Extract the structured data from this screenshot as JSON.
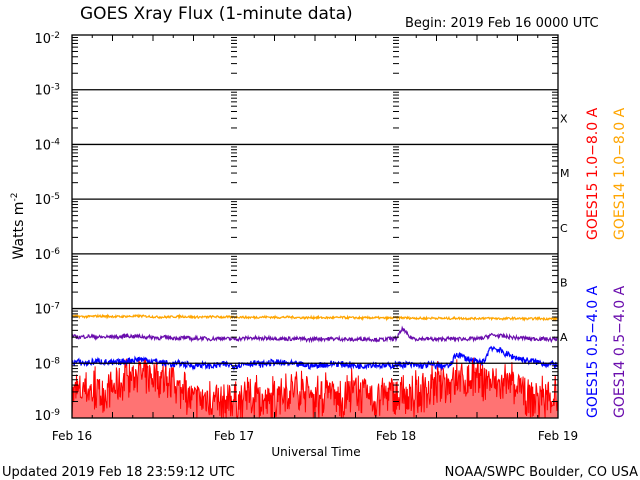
{
  "chart_data": {
    "type": "line",
    "title": "GOES Xray Flux (1-minute data)",
    "begin": "Begin:  2019 Feb 16 0000 UTC",
    "xlabel": "Universal Time",
    "ylabel": "Watts m",
    "ylabel_sup": "-2",
    "x_unit": "hours since 2019 Feb 16 0000 UTC",
    "xlim": [
      0,
      72
    ],
    "ylim": [
      1e-09,
      0.01
    ],
    "yscale": "log",
    "x_ticks": [
      {
        "x": 0,
        "label": "Feb 16"
      },
      {
        "x": 24,
        "label": "Feb 17"
      },
      {
        "x": 48,
        "label": "Feb 18"
      },
      {
        "x": 72,
        "label": "Feb 19"
      }
    ],
    "y_ticks": [
      {
        "v": 0.01,
        "label": "10",
        "exp": "-2"
      },
      {
        "v": 0.001,
        "label": "10",
        "exp": "-3"
      },
      {
        "v": 0.0001,
        "label": "10",
        "exp": "-4"
      },
      {
        "v": 1e-05,
        "label": "10",
        "exp": "-5"
      },
      {
        "v": 1e-06,
        "label": "10",
        "exp": "-6"
      },
      {
        "v": 1e-07,
        "label": "10",
        "exp": "-7"
      },
      {
        "v": 1e-08,
        "label": "10",
        "exp": "-8"
      },
      {
        "v": 1e-09,
        "label": "10",
        "exp": "-9"
      }
    ],
    "flare_classes": [
      {
        "label": "X",
        "v": 0.0003
      },
      {
        "label": "M",
        "v": 3e-05
      },
      {
        "label": "C",
        "v": 3e-06
      },
      {
        "label": "B",
        "v": 3e-07
      },
      {
        "label": "A",
        "v": 3e-08
      }
    ],
    "grid": "horizontal at decades 1e-3 to 1e-8",
    "legend_position": "right, vertical",
    "series": [
      {
        "name": "GOES15 1.0-8.0 A",
        "label": "GOES15 1.0−8.0 A",
        "color": "#ff0000",
        "noise": 0.35,
        "values": [
          2.5e-09,
          3e-09,
          3.5e-09,
          3e-09,
          2.5e-09,
          3e-09,
          3.5e-09,
          4e-09,
          5e-09,
          5.5e-09,
          6e-09,
          5.5e-09,
          6e-09,
          5e-09,
          4.5e-09,
          4e-09,
          3e-09,
          2.5e-09,
          2e-09,
          2e-09,
          2.5e-09,
          2e-09,
          1.8e-09,
          2e-09,
          2.2e-09,
          2e-09,
          2.5e-09,
          2.2e-09,
          2e-09,
          1.8e-09,
          2e-09,
          2.5e-09,
          3e-09,
          3.5e-09,
          3e-09,
          2.5e-09,
          2e-09,
          2.2e-09,
          2.5e-09,
          2.2e-09,
          2e-09,
          2.5e-09,
          3e-09,
          2.5e-09,
          2.2e-09,
          2e-09,
          2.5e-09,
          2.8e-09,
          2.5e-09,
          2.2e-09,
          2e-09,
          2.5e-09,
          2.8e-09,
          3e-09,
          3.5e-09,
          3.8e-09,
          4e-09,
          4.5e-09,
          4.8e-09,
          5e-09,
          5e-09,
          4.5e-09,
          4.5e-09,
          4e-09,
          3.8e-09,
          3.5e-09,
          3e-09,
          2.5e-09,
          2.2e-09,
          2e-09,
          2e-09,
          2.5e-09,
          2.2e-09
        ]
      },
      {
        "name": "GOES14 1.0-8.0 A",
        "label": "GOES14 1.0−8.0 A",
        "color": "#ffa500",
        "noise": 0.02,
        "values": [
          7.2e-08,
          7.2e-08,
          7.1e-08,
          7.2e-08,
          7.3e-08,
          7.2e-08,
          7.2e-08,
          7.1e-08,
          7.2e-08,
          7.2e-08,
          7.3e-08,
          7.2e-08,
          7.1e-08,
          7e-08,
          7e-08,
          7.1e-08,
          7.2e-08,
          7.1e-08,
          7e-08,
          7e-08,
          7e-08,
          7.1e-08,
          7e-08,
          7e-08,
          7e-08,
          7e-08,
          6.9e-08,
          6.9e-08,
          7e-08,
          7e-08,
          6.9e-08,
          6.9e-08,
          7e-08,
          6.9e-08,
          6.8e-08,
          6.8e-08,
          6.9e-08,
          6.8e-08,
          6.8e-08,
          6.8e-08,
          6.9e-08,
          6.8e-08,
          6.8e-08,
          6.7e-08,
          6.8e-08,
          6.8e-08,
          6.7e-08,
          6.7e-08,
          6.8e-08,
          6.8e-08,
          6.7e-08,
          6.7e-08,
          6.6e-08,
          6.7e-08,
          6.7e-08,
          6.6e-08,
          6.6e-08,
          6.7e-08,
          6.6e-08,
          6.6e-08,
          6.6e-08,
          6.7e-08,
          6.6e-08,
          6.6e-08,
          6.5e-08,
          6.6e-08,
          6.6e-08,
          6.5e-08,
          6.5e-08,
          6.6e-08,
          6.5e-08,
          6.5e-08,
          6.5e-08
        ]
      },
      {
        "name": "GOES15 0.5-4.0 A",
        "label": "GOES15 0.5−4.0 A",
        "color": "#0000ff",
        "noise": 0.06,
        "values": [
          1.05e-08,
          1.05e-08,
          1e-08,
          1.05e-08,
          1.1e-08,
          1.05e-08,
          1e-08,
          1.05e-08,
          1.1e-08,
          1.15e-08,
          1.2e-08,
          1.15e-08,
          1.1e-08,
          1.05e-08,
          1e-08,
          9.5e-09,
          1e-08,
          9.5e-09,
          9e-09,
          9.5e-09,
          9e-09,
          9e-09,
          9.5e-09,
          9.5e-09,
          9e-09,
          9.5e-09,
          1e-08,
          1e-08,
          9.5e-09,
          1e-08,
          1.05e-08,
          1e-08,
          1e-08,
          9.5e-09,
          9.5e-09,
          9e-09,
          9e-09,
          9.5e-09,
          9.5e-09,
          1e-08,
          9.5e-09,
          9.5e-09,
          9e-09,
          9e-09,
          9.5e-09,
          9.5e-09,
          9e-09,
          9e-09,
          9.5e-09,
          9.5e-09,
          9.5e-09,
          9e-09,
          9e-09,
          9.5e-09,
          9e-09,
          9e-09,
          9e-09,
          1.5e-08,
          1.3e-08,
          1.15e-08,
          1.05e-08,
          1.05e-08,
          2e-08,
          1.8e-08,
          1.55e-08,
          1.35e-08,
          1.25e-08,
          1.15e-08,
          1.1e-08,
          1.05e-08,
          1e-08,
          9.5e-09,
          9.5e-09
        ]
      },
      {
        "name": "GOES14 0.5-4.0 A",
        "label": "GOES14 0.5−4.0 A",
        "color": "#6a0dad",
        "noise": 0.035,
        "values": [
          3.1e-08,
          3e-08,
          3.1e-08,
          3.1e-08,
          3e-08,
          3e-08,
          3.1e-08,
          3e-08,
          3.2e-08,
          3.1e-08,
          3.1e-08,
          3e-08,
          3e-08,
          2.9e-08,
          3e-08,
          2.9e-08,
          2.9e-08,
          2.9e-08,
          2.8e-08,
          2.9e-08,
          2.8e-08,
          2.8e-08,
          2.9e-08,
          2.8e-08,
          2.8e-08,
          2.8e-08,
          2.9e-08,
          2.9e-08,
          2.8e-08,
          2.9e-08,
          2.9e-08,
          2.8e-08,
          2.8e-08,
          2.8e-08,
          2.8e-08,
          2.7e-08,
          2.8e-08,
          2.8e-08,
          2.8e-08,
          2.8e-08,
          2.8e-08,
          2.7e-08,
          2.7e-08,
          2.8e-08,
          2.8e-08,
          2.7e-08,
          2.7e-08,
          2.8e-08,
          2.8e-08,
          4.3e-08,
          3e-08,
          2.8e-08,
          2.8e-08,
          2.8e-08,
          2.7e-08,
          2.8e-08,
          2.8e-08,
          2.8e-08,
          2.8e-08,
          2.8e-08,
          2.8e-08,
          2.9e-08,
          3.3e-08,
          3.2e-08,
          3.1e-08,
          3e-08,
          2.9e-08,
          2.9e-08,
          2.8e-08,
          2.8e-08,
          2.8e-08,
          2.7e-08,
          2.8e-08
        ]
      }
    ]
  },
  "footer": {
    "updated": "Updated 2019 Feb 18 23:59:12 UTC",
    "credit": "NOAA/SWPC Boulder, CO USA"
  }
}
